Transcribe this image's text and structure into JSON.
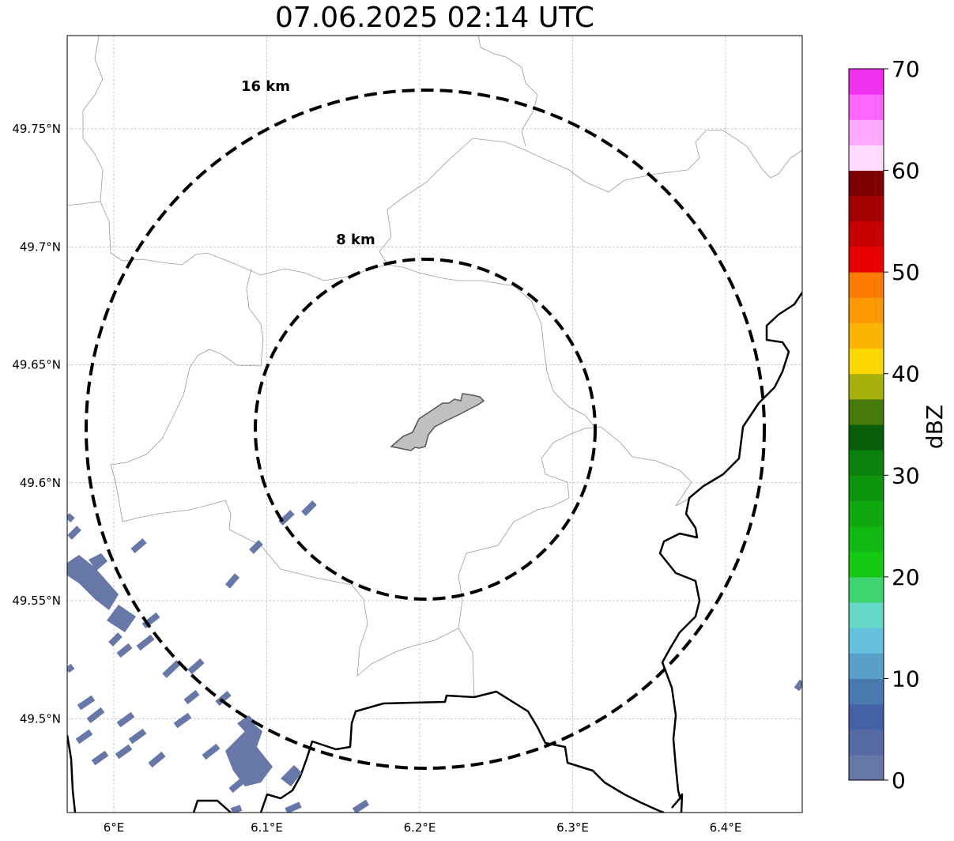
{
  "title": "07.06.2025 02:14 UTC",
  "map": {
    "lon_ticks": [
      {
        "value": 6.0,
        "label": "6°E"
      },
      {
        "value": 6.1,
        "label": "6.1°E"
      },
      {
        "value": 6.2,
        "label": "6.2°E"
      },
      {
        "value": 6.3,
        "label": "6.3°E"
      },
      {
        "value": 6.4,
        "label": "6.4°E"
      }
    ],
    "lat_ticks": [
      {
        "value": 49.75,
        "label": "49.75°N"
      },
      {
        "value": 49.7,
        "label": "49.7°N"
      },
      {
        "value": 49.65,
        "label": "49.65°N"
      },
      {
        "value": 49.6,
        "label": "49.6°N"
      },
      {
        "value": 49.55,
        "label": "49.55°N"
      },
      {
        "value": 49.5,
        "label": "49.5°N"
      }
    ],
    "range_rings": [
      {
        "label": "16 km",
        "radius_km": 16
      },
      {
        "label": "8 km",
        "radius_km": 8
      }
    ],
    "gridlines": true,
    "precip_color": "#6677a8"
  },
  "colorbar": {
    "label": "dBZ",
    "min": 0,
    "max": 70,
    "step": 2.5,
    "tick_labels": [
      "0",
      "10",
      "20",
      "30",
      "40",
      "50",
      "60",
      "70"
    ],
    "colors": [
      "#6677a8",
      "#566ba3",
      "#4662a6",
      "#4a79b0",
      "#58a0c8",
      "#66c2dc",
      "#66d8c8",
      "#3ed470",
      "#14c814",
      "#12b812",
      "#0fa80f",
      "#0d950d",
      "#0b820b",
      "#095f09",
      "#467a0a",
      "#a8b00a",
      "#fcd800",
      "#fcb400",
      "#fc9900",
      "#fc7b00",
      "#e80000",
      "#c80000",
      "#a40000",
      "#7c0000",
      "#ffdcff",
      "#ffaaff",
      "#ff66ff",
      "#f032f0"
    ]
  }
}
